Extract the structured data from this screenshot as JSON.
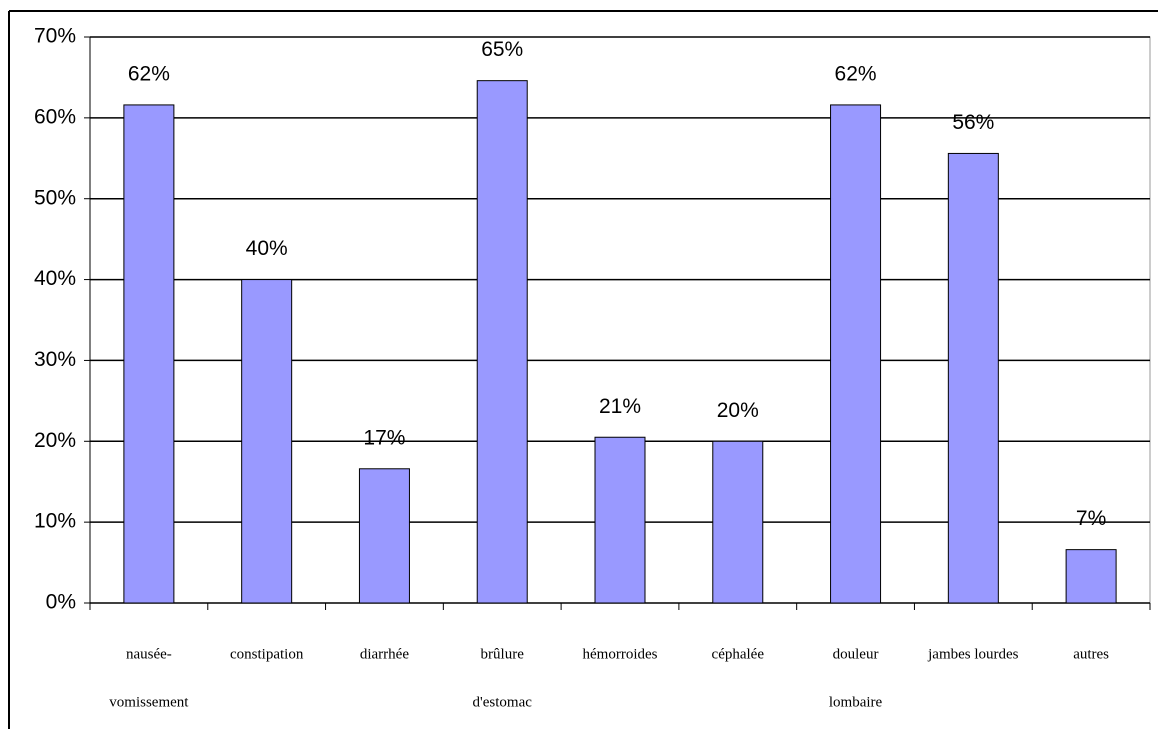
{
  "chart_data": {
    "type": "bar",
    "categories": [
      [
        "nausée-",
        "vomissement"
      ],
      [
        "constipation"
      ],
      [
        "diarrhée"
      ],
      [
        "brûlure",
        "d'estomac"
      ],
      [
        "hémorroides"
      ],
      [
        "céphalée"
      ],
      [
        "douleur",
        "lombaire"
      ],
      [
        "jambes lourdes"
      ],
      [
        "autres"
      ]
    ],
    "values": [
      61.6,
      40,
      16.6,
      64.6,
      20.5,
      20,
      61.6,
      55.6,
      6.6
    ],
    "value_labels": [
      "62%",
      "40%",
      "17%",
      "65%",
      "21%",
      "20%",
      "62%",
      "56%",
      "7%"
    ],
    "color": "#9999ff",
    "ylim": [
      0,
      70
    ],
    "yticks": [
      {
        "value": 0,
        "label": "0%"
      },
      {
        "value": 10,
        "label": "10%"
      },
      {
        "value": 20,
        "label": "20%"
      },
      {
        "value": 30,
        "label": "30%"
      },
      {
        "value": 40,
        "label": "40%"
      },
      {
        "value": 50,
        "label": "50%"
      },
      {
        "value": 60,
        "label": "60%"
      },
      {
        "value": 70,
        "label": "70%"
      }
    ],
    "grid": true
  }
}
